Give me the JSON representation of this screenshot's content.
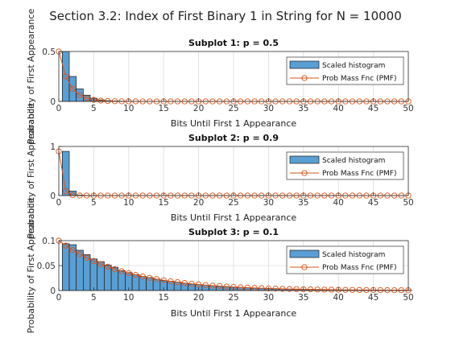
{
  "figure_title": "Section 3.2: Index of First Binary 1 in String for N = 10000",
  "chart_data": [
    {
      "type": "bar",
      "title": "Subplot 1: p = 0.5",
      "xlabel": "Bits Until First 1 Appearance",
      "ylabel": "Probability of First Appearance",
      "xlim": [
        0,
        50
      ],
      "ylim": [
        0,
        0.5
      ],
      "xticks": [
        0,
        5,
        10,
        15,
        20,
        25,
        30,
        35,
        40,
        45,
        50
      ],
      "yticks": [
        0,
        0.5
      ],
      "ytick_labels": [
        "0",
        "0.5"
      ],
      "grid": true,
      "legend": {
        "placement": "top-right",
        "entries": [
          "Scaled histogram",
          "Prob Mass Fnc (PMF)"
        ]
      },
      "bar_x": [
        1,
        2,
        3,
        4,
        5,
        6,
        7,
        8,
        9,
        10
      ],
      "bar_values": [
        0.5,
        0.25,
        0.125,
        0.0625,
        0.0313,
        0.0156,
        0.0078,
        0.0039,
        0.002,
        0.001
      ],
      "pmf_x": [
        0,
        1,
        2,
        3,
        4,
        5,
        6,
        7,
        8,
        9,
        10,
        11,
        12,
        13,
        14,
        15,
        16,
        17,
        18,
        19,
        20,
        21,
        22,
        23,
        24,
        25,
        26,
        27,
        28,
        29,
        30,
        31,
        32,
        33,
        34,
        35,
        36,
        37,
        38,
        39,
        40,
        41,
        42,
        43,
        44,
        45,
        46,
        47,
        48,
        49,
        50
      ],
      "pmf_values": [
        0.5,
        0.25,
        0.125,
        0.0625,
        0.0313,
        0.0156,
        0.0078,
        0.0039,
        0.002,
        0.001,
        0.0005,
        0.0002,
        0.0001,
        0.0001,
        0,
        0,
        0,
        0,
        0,
        0,
        0,
        0,
        0,
        0,
        0,
        0,
        0,
        0,
        0,
        0,
        0,
        0,
        0,
        0,
        0,
        0,
        0,
        0,
        0,
        0,
        0,
        0,
        0,
        0,
        0,
        0,
        0,
        0,
        0,
        0,
        0
      ]
    },
    {
      "type": "bar",
      "title": "Subplot 2: p = 0.9",
      "xlabel": "Bits Until First 1 Appearance",
      "ylabel": "Probability of First Appearance",
      "xlim": [
        0,
        50
      ],
      "ylim": [
        0,
        1
      ],
      "xticks": [
        0,
        5,
        10,
        15,
        20,
        25,
        30,
        35,
        40,
        45,
        50
      ],
      "yticks": [
        0,
        1
      ],
      "ytick_labels": [
        "0",
        "1"
      ],
      "grid": true,
      "legend": {
        "placement": "top-right",
        "entries": [
          "Scaled histogram",
          "Prob Mass Fnc (PMF)"
        ]
      },
      "bar_x": [
        1,
        2,
        3,
        4,
        5
      ],
      "bar_values": [
        0.9,
        0.09,
        0.009,
        0.0009,
        0.0001
      ],
      "pmf_x": [
        0,
        1,
        2,
        3,
        4,
        5,
        6,
        7,
        8,
        9,
        10,
        11,
        12,
        13,
        14,
        15,
        16,
        17,
        18,
        19,
        20,
        21,
        22,
        23,
        24,
        25,
        26,
        27,
        28,
        29,
        30,
        31,
        32,
        33,
        34,
        35,
        36,
        37,
        38,
        39,
        40,
        41,
        42,
        43,
        44,
        45,
        46,
        47,
        48,
        49,
        50
      ],
      "pmf_values": [
        0.9,
        0.09,
        0.009,
        0.0009,
        0.0001,
        0,
        0,
        0,
        0,
        0,
        0,
        0,
        0,
        0,
        0,
        0,
        0,
        0,
        0,
        0,
        0,
        0,
        0,
        0,
        0,
        0,
        0,
        0,
        0,
        0,
        0,
        0,
        0,
        0,
        0,
        0,
        0,
        0,
        0,
        0,
        0,
        0,
        0,
        0,
        0,
        0,
        0,
        0,
        0,
        0,
        0
      ]
    },
    {
      "type": "bar",
      "title": "Subplot 3: p = 0.1",
      "xlabel": "Bits Until First 1 Appearance",
      "ylabel": "Probability of First Appearance",
      "xlim": [
        0,
        50
      ],
      "ylim": [
        0,
        0.1
      ],
      "xticks": [
        0,
        5,
        10,
        15,
        20,
        25,
        30,
        35,
        40,
        45,
        50
      ],
      "yticks": [
        0,
        0.05,
        0.1
      ],
      "ytick_labels": [
        "0",
        "0.05",
        "0.1"
      ],
      "grid": true,
      "legend": {
        "placement": "top-right",
        "entries": [
          "Scaled histogram",
          "Prob Mass Fnc (PMF)"
        ]
      },
      "bar_x": [
        1,
        2,
        3,
        4,
        5,
        6,
        7,
        8,
        9,
        10,
        11,
        12,
        13,
        14,
        15,
        16,
        17,
        18,
        19,
        20,
        21,
        22,
        23,
        24,
        25,
        26,
        27,
        28,
        29,
        30,
        31,
        32,
        33,
        34,
        35,
        36,
        37,
        38,
        39,
        40,
        41,
        42,
        43,
        44,
        45,
        46,
        47,
        48,
        49,
        50
      ],
      "bar_values": [
        0.0938,
        0.0919,
        0.0807,
        0.0719,
        0.0632,
        0.0579,
        0.0511,
        0.0465,
        0.0399,
        0.0358,
        0.0319,
        0.0281,
        0.0261,
        0.0228,
        0.0196,
        0.0186,
        0.0169,
        0.0148,
        0.0129,
        0.0118,
        0.0107,
        0.0095,
        0.0082,
        0.0076,
        0.0069,
        0.0061,
        0.0053,
        0.0046,
        0.0043,
        0.0039,
        0.0033,
        0.003,
        0.0027,
        0.0022,
        0.002,
        0.0018,
        0.0016,
        0.0015,
        0.0013,
        0.0011,
        0.001,
        0.0009,
        0.0008,
        0.0007,
        0.0006,
        0.0005,
        0.0005,
        0.0005,
        0.0004,
        0.0004
      ],
      "pmf_x": [
        0,
        1,
        2,
        3,
        4,
        5,
        6,
        7,
        8,
        9,
        10,
        11,
        12,
        13,
        14,
        15,
        16,
        17,
        18,
        19,
        20,
        21,
        22,
        23,
        24,
        25,
        26,
        27,
        28,
        29,
        30,
        31,
        32,
        33,
        34,
        35,
        36,
        37,
        38,
        39,
        40,
        41,
        42,
        43,
        44,
        45,
        46,
        47,
        48,
        49,
        50
      ],
      "pmf_values": [
        0.1,
        0.09,
        0.081,
        0.0729,
        0.0656,
        0.059,
        0.0531,
        0.0478,
        0.043,
        0.0387,
        0.0349,
        0.0314,
        0.0282,
        0.0254,
        0.0229,
        0.0206,
        0.0185,
        0.0167,
        0.015,
        0.0135,
        0.0122,
        0.0109,
        0.0098,
        0.0089,
        0.008,
        0.0072,
        0.0065,
        0.0058,
        0.0052,
        0.0047,
        0.0042,
        0.0038,
        0.0034,
        0.0031,
        0.0028,
        0.0025,
        0.0023,
        0.002,
        0.0018,
        0.0016,
        0.0015,
        0.0013,
        0.0012,
        0.0011,
        0.001,
        0.0009,
        0.0008,
        0.0007,
        0.0006,
        0.0006,
        0.0005
      ]
    }
  ],
  "colors": {
    "bar_fill": "#5a9fd4",
    "bar_edge": "#1a1a1a",
    "pmf_line": "#d9541a",
    "grid": "#dcdcdc",
    "axes": "#333333"
  }
}
